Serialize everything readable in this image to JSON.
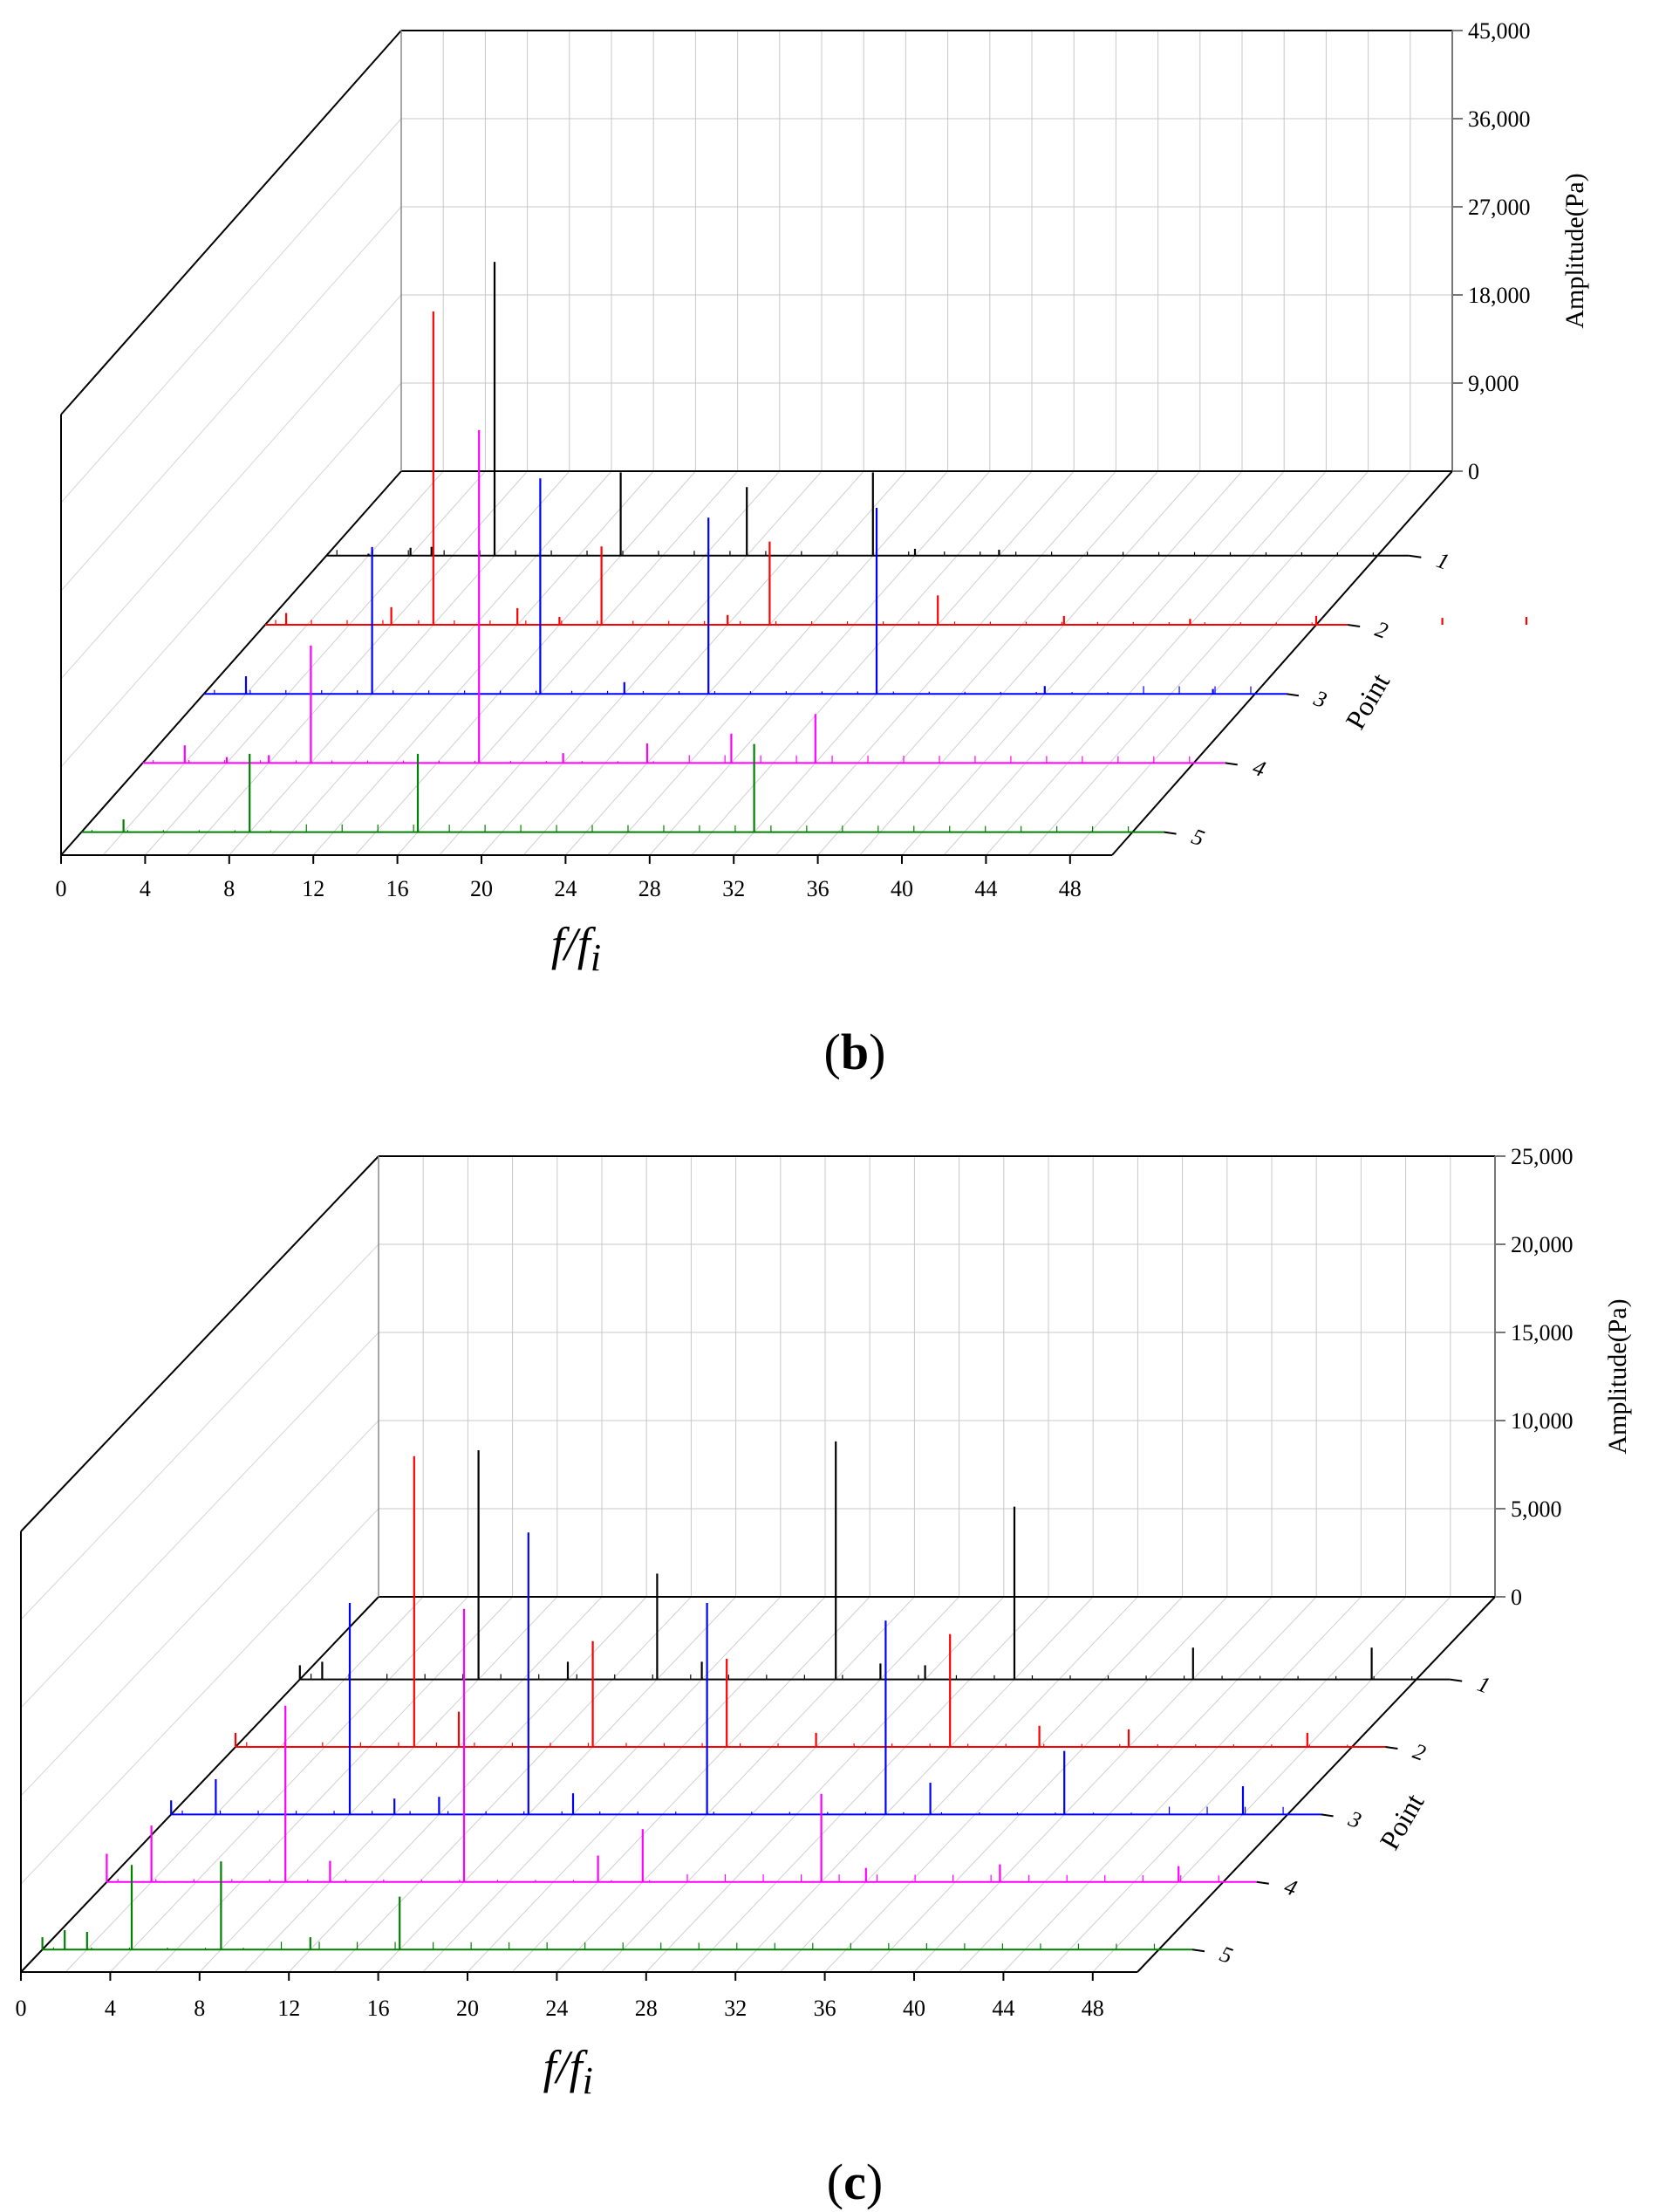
{
  "chart_data": [
    {
      "id": "b",
      "type": "waterfall-3d",
      "panel_label": "(b)",
      "xlabel": "f/fi",
      "xlabel_main": "f/f",
      "xlabel_sub": "i",
      "ylabel": "Amplitude(Pa)",
      "zlabel": "Point",
      "x_ticks": [
        "0",
        "4",
        "8",
        "12",
        "16",
        "20",
        "24",
        "28",
        "32",
        "36",
        "40",
        "44",
        "48"
      ],
      "xlim": [
        0,
        50
      ],
      "z_ticks": [
        "1",
        "2",
        "3",
        "4",
        "5"
      ],
      "y_ticks": [
        "0",
        "9,000",
        "18,000",
        "27,000",
        "36,000",
        "45,000"
      ],
      "ylim": [
        0,
        45000
      ],
      "series": [
        {
          "name": "1",
          "color": "#000000",
          "peaks": [
            [
              2,
              200
            ],
            [
              4,
              800
            ],
            [
              5,
              900
            ],
            [
              8,
              30000
            ],
            [
              14,
              8500
            ],
            [
              20,
              7000
            ],
            [
              26,
              8500
            ],
            [
              28,
              700
            ],
            [
              32,
              600
            ]
          ]
        },
        {
          "name": "2",
          "color": "#ff0000",
          "peaks": [
            [
              1,
              1200
            ],
            [
              6,
              1800
            ],
            [
              8,
              32000
            ],
            [
              12,
              1700
            ],
            [
              14,
              800
            ],
            [
              16,
              8000
            ],
            [
              22,
              1000
            ],
            [
              24,
              8500
            ],
            [
              32,
              3000
            ],
            [
              38,
              900
            ],
            [
              44,
              600
            ],
            [
              50,
              900
            ],
            [
              56,
              700
            ],
            [
              60,
              800
            ]
          ]
        },
        {
          "name": "3",
          "color": "#0000ff",
          "peaks": [
            [
              2,
              1800
            ],
            [
              8,
              15000
            ],
            [
              16,
              22000
            ],
            [
              20,
              1200
            ],
            [
              24,
              18000
            ],
            [
              32,
              19000
            ],
            [
              40,
              800
            ],
            [
              48,
              500
            ]
          ]
        },
        {
          "name": "4",
          "color": "#ff00ff",
          "peaks": [
            [
              2,
              1800
            ],
            [
              4,
              600
            ],
            [
              6,
              800
            ],
            [
              8,
              12000
            ],
            [
              16,
              34000
            ],
            [
              20,
              1000
            ],
            [
              24,
              2000
            ],
            [
              28,
              3000
            ],
            [
              32,
              5000
            ]
          ]
        },
        {
          "name": "5",
          "color": "#008000",
          "peaks": [
            [
              2,
              1300
            ],
            [
              8,
              8000
            ],
            [
              16,
              8000
            ],
            [
              32,
              9000
            ]
          ]
        }
      ]
    },
    {
      "id": "c",
      "type": "waterfall-3d",
      "panel_label": "(c)",
      "xlabel": "f/fi",
      "xlabel_main": "f/f",
      "xlabel_sub": "i",
      "ylabel": "Amplitude(Pa)",
      "zlabel": "Point",
      "x_ticks": [
        "0",
        "4",
        "8",
        "12",
        "16",
        "20",
        "24",
        "28",
        "32",
        "36",
        "40",
        "44",
        "48"
      ],
      "xlim": [
        0,
        50
      ],
      "z_ticks": [
        "1",
        "2",
        "3",
        "4",
        "5"
      ],
      "y_ticks": [
        "0",
        "5,000",
        "10,000",
        "15,000",
        "20,000",
        "25,000"
      ],
      "ylim": [
        0,
        25000
      ],
      "series": [
        {
          "name": "1",
          "color": "#000000",
          "peaks": [
            [
              0,
              800
            ],
            [
              1,
              1000
            ],
            [
              8,
              13000
            ],
            [
              12,
              1000
            ],
            [
              16,
              6000
            ],
            [
              18,
              1000
            ],
            [
              24,
              13500
            ],
            [
              26,
              900
            ],
            [
              28,
              800
            ],
            [
              32,
              9800
            ],
            [
              40,
              1800
            ],
            [
              48,
              1800
            ]
          ]
        },
        {
          "name": "2",
          "color": "#ff0000",
          "peaks": [
            [
              0,
              800
            ],
            [
              8,
              16500
            ],
            [
              10,
              2000
            ],
            [
              16,
              6000
            ],
            [
              22,
              5000
            ],
            [
              26,
              800
            ],
            [
              32,
              6400
            ],
            [
              36,
              1200
            ],
            [
              40,
              1000
            ],
            [
              48,
              800
            ]
          ]
        },
        {
          "name": "3",
          "color": "#0000ff",
          "peaks": [
            [
              0,
              800
            ],
            [
              2,
              2000
            ],
            [
              8,
              12000
            ],
            [
              10,
              900
            ],
            [
              12,
              1000
            ],
            [
              16,
              16000
            ],
            [
              18,
              1200
            ],
            [
              24,
              12000
            ],
            [
              32,
              11000
            ],
            [
              34,
              1800
            ],
            [
              40,
              3600
            ],
            [
              48,
              1600
            ]
          ]
        },
        {
          "name": "4",
          "color": "#ff00ff",
          "peaks": [
            [
              0,
              1600
            ],
            [
              2,
              3200
            ],
            [
              8,
              10000
            ],
            [
              10,
              1200
            ],
            [
              16,
              15500
            ],
            [
              22,
              1500
            ],
            [
              24,
              3000
            ],
            [
              32,
              5000
            ],
            [
              34,
              800
            ],
            [
              40,
              1000
            ],
            [
              48,
              900
            ]
          ]
        },
        {
          "name": "5",
          "color": "#008000",
          "peaks": [
            [
              0,
              700
            ],
            [
              1,
              1100
            ],
            [
              2,
              1000
            ],
            [
              4,
              4800
            ],
            [
              8,
              5000
            ],
            [
              12,
              700
            ],
            [
              16,
              3000
            ]
          ]
        }
      ]
    }
  ]
}
